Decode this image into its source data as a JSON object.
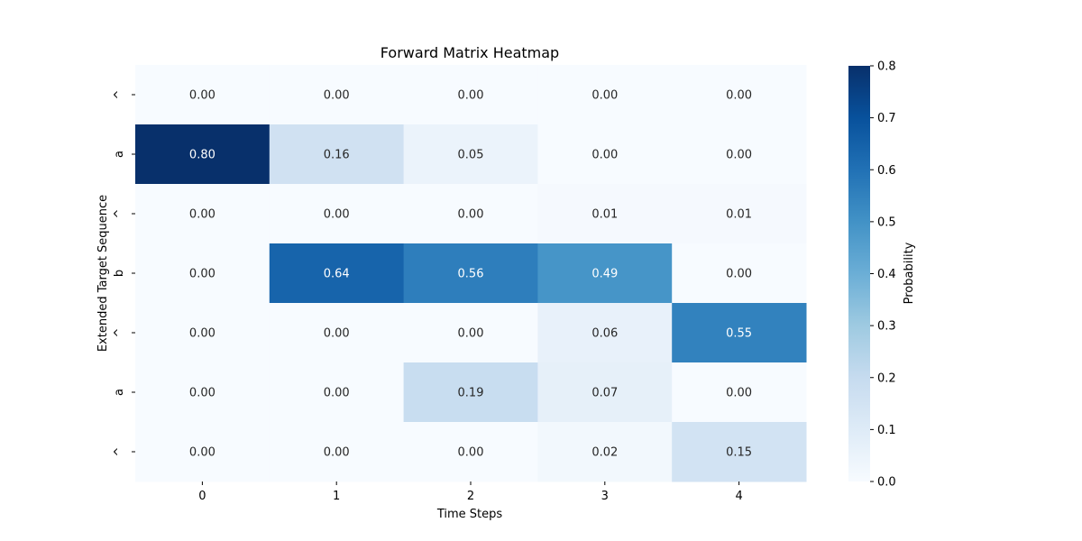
{
  "chart_data": {
    "type": "heatmap",
    "title": "Forward Matrix Heatmap",
    "xlabel": "Time Steps",
    "ylabel": "Extended Target Sequence",
    "x_categories": [
      "0",
      "1",
      "2",
      "3",
      "4"
    ],
    "y_categories": [
      "^",
      "a",
      "^",
      "b",
      "^",
      "a",
      "^"
    ],
    "values": [
      [
        0.0,
        0.0,
        0.0,
        0.0,
        0.0
      ],
      [
        0.8,
        0.16,
        0.05,
        0.0,
        0.0
      ],
      [
        0.0,
        0.0,
        0.0,
        0.01,
        0.01
      ],
      [
        0.0,
        0.64,
        0.56,
        0.49,
        0.0
      ],
      [
        0.0,
        0.0,
        0.0,
        0.06,
        0.55
      ],
      [
        0.0,
        0.0,
        0.19,
        0.07,
        0.0
      ],
      [
        0.0,
        0.0,
        0.0,
        0.02,
        0.15
      ]
    ],
    "value_format": "0.00",
    "colormap": "Blues",
    "colorbar": {
      "label": "Probability",
      "range": [
        0.0,
        0.8
      ],
      "ticks": [
        "0.0",
        "0.1",
        "0.2",
        "0.3",
        "0.4",
        "0.5",
        "0.6",
        "0.7",
        "0.8"
      ]
    }
  }
}
